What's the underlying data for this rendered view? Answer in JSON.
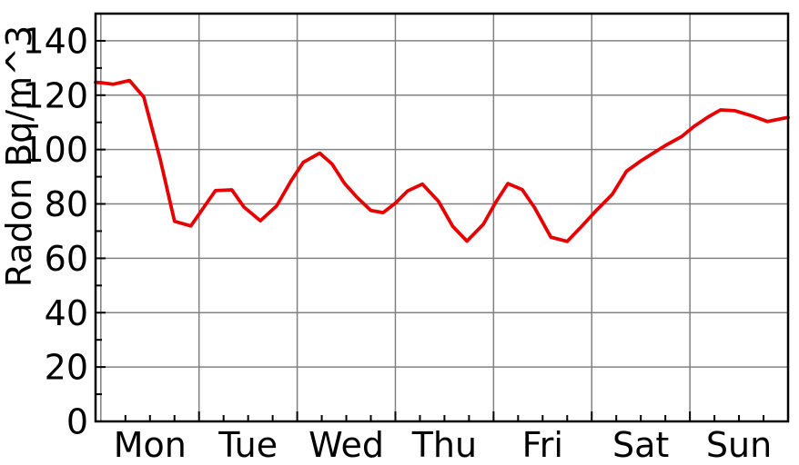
{
  "chart_data": {
    "type": "line",
    "title": "",
    "xlabel": "",
    "ylabel": "Radon Bq/m^3",
    "legend": "none",
    "grid": true,
    "xlim_hours": [
      -1.3,
      168
    ],
    "ylim": [
      0,
      150
    ],
    "y_ticks": [
      0,
      20,
      40,
      60,
      80,
      100,
      120,
      140
    ],
    "x_tick_labels": [
      "Mon",
      "Tue",
      "Wed",
      "Thu",
      "Fri",
      "Sat",
      "Sun"
    ],
    "day_boundaries_hours": [
      0,
      24,
      48,
      72,
      96,
      120,
      144,
      168
    ],
    "x_minor_tick_step_hours": 6,
    "y_minor_tick_step": 10,
    "colors": {
      "line": "#e60000",
      "grid": "#808080",
      "frame": "#000000",
      "text": "#000000",
      "background": "#ffffff"
    },
    "series": [
      {
        "name": "radon_bq_m3",
        "x_hours": [
          -1.3,
          0,
          3,
          7,
          10.5,
          14.5,
          18,
          22,
          28,
          32,
          35,
          39,
          43,
          46.5,
          49.5,
          53.5,
          56.5,
          59.5,
          62.5,
          66,
          69,
          72,
          75,
          78.6,
          82.5,
          86,
          89.5,
          93.5,
          96.5,
          99.5,
          103,
          106,
          110,
          114,
          117.5,
          121,
          125,
          128.5,
          132,
          135,
          138,
          142,
          145,
          148.5,
          151.5,
          155,
          159,
          163,
          168
        ],
        "y_values": [
          124.7,
          124.6,
          124.0,
          125.4,
          119.3,
          96.5,
          73.6,
          71.9,
          84.9,
          85.2,
          78.8,
          73.8,
          79.3,
          88.5,
          95.3,
          98.7,
          94.7,
          87.7,
          82.6,
          77.6,
          76.8,
          80.3,
          84.8,
          87.3,
          81.0,
          71.8,
          66.3,
          72.5,
          80.5,
          87.5,
          85.3,
          78.7,
          67.8,
          66.2,
          71.7,
          77.4,
          83.5,
          92.0,
          95.8,
          98.7,
          101.5,
          104.8,
          108.5,
          112.0,
          114.6,
          114.3,
          112.5,
          110.3,
          111.8
        ]
      }
    ]
  }
}
